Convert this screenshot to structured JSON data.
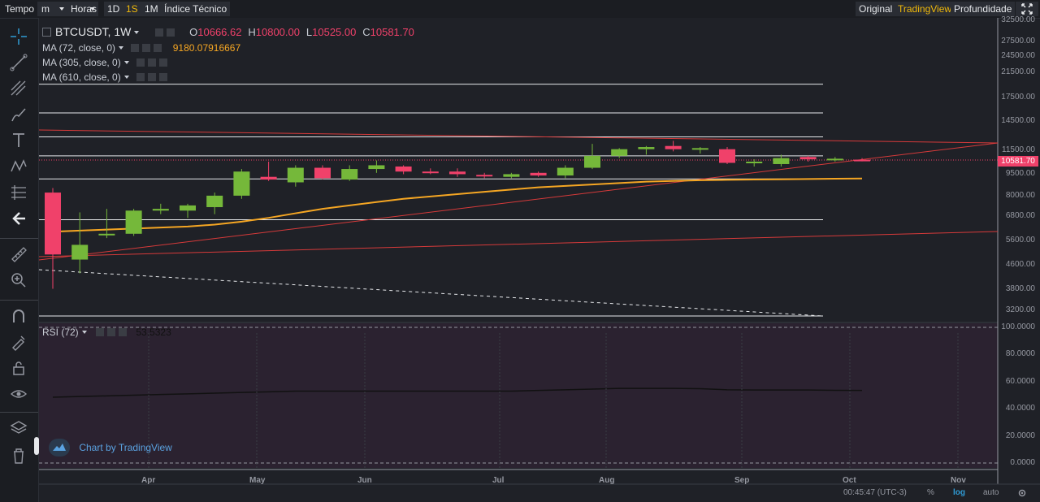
{
  "toolbar": {
    "time_label": "Tempo",
    "minute_select": "m",
    "hours_select": "Horas",
    "intervals": [
      "1D",
      "1S",
      "1M"
    ],
    "active_interval": "1S",
    "indicators_label": "Índice Técnico",
    "views": [
      "Original",
      "TradingView",
      "Profundidade"
    ],
    "active_view": "TradingView"
  },
  "legend": {
    "symbol": "BTCUSDT, 1W",
    "o_label": "O",
    "o_value": "10666.62",
    "h_label": "H",
    "h_value": "10800.00",
    "l_label": "L",
    "l_value": "10525.00",
    "c_label": "C",
    "c_value": "10581.70",
    "ma1_label": "MA (72, close, 0)",
    "ma1_value": "9180.07916667",
    "ma2_label": "MA (305, close, 0)",
    "ma3_label": "MA (610, close, 0)",
    "rsi_label": "RSI (72)",
    "rsi_value": "53.5323"
  },
  "colors": {
    "up": "#75b83a",
    "down": "#f0416a",
    "ma": "#f5a623",
    "trend": "#d63a3a",
    "rsi_bg": "#2b2230"
  },
  "price_axis": [
    "32500.00",
    "27500.00",
    "24500.00",
    "21500.00",
    "17500.00",
    "14500.00",
    "11500.00",
    "9500.00",
    "8000.00",
    "6800.00",
    "5600.00",
    "4600.00",
    "3800.00",
    "3200.00"
  ],
  "current_price": "10581.70",
  "rsi_axis": [
    "100.0000",
    "80.0000",
    "60.0000",
    "40.0000",
    "20.0000",
    "0.0000"
  ],
  "time_axis": [
    "Apr",
    "May",
    "Jun",
    "Jul",
    "Aug",
    "Sep",
    "Oct",
    "Nov"
  ],
  "watermark": "Chart by TradingView",
  "footer": {
    "clock": "00:45:47 (UTC-3)",
    "percent": "%",
    "log": "log",
    "auto": "auto"
  },
  "chart_data": {
    "type": "candlestick",
    "symbol": "BTCUSDT",
    "interval": "1W",
    "scale": "log",
    "grid": false,
    "candles": [
      {
        "o": 8200,
        "h": 8500,
        "l": 3800,
        "c": 5000
      },
      {
        "o": 4800,
        "h": 7000,
        "l": 4300,
        "c": 5400
      },
      {
        "o": 5900,
        "h": 7200,
        "l": 5700,
        "c": 5900
      },
      {
        "o": 5900,
        "h": 7200,
        "l": 5800,
        "c": 7100
      },
      {
        "o": 7100,
        "h": 7500,
        "l": 6900,
        "c": 7200
      },
      {
        "o": 7100,
        "h": 7500,
        "l": 6700,
        "c": 7400
      },
      {
        "o": 7300,
        "h": 8200,
        "l": 6900,
        "c": 8000
      },
      {
        "o": 8000,
        "h": 9900,
        "l": 7800,
        "c": 9700
      },
      {
        "o": 9300,
        "h": 10500,
        "l": 9000,
        "c": 9100
      },
      {
        "o": 8900,
        "h": 10200,
        "l": 8600,
        "c": 10000
      },
      {
        "o": 10000,
        "h": 10200,
        "l": 9100,
        "c": 9200
      },
      {
        "o": 9100,
        "h": 10200,
        "l": 9000,
        "c": 9900
      },
      {
        "o": 9900,
        "h": 10600,
        "l": 9600,
        "c": 10200
      },
      {
        "o": 10100,
        "h": 10200,
        "l": 9500,
        "c": 9700
      },
      {
        "o": 9700,
        "h": 9950,
        "l": 9500,
        "c": 9600
      },
      {
        "o": 9700,
        "h": 9950,
        "l": 9300,
        "c": 9500
      },
      {
        "o": 9450,
        "h": 9600,
        "l": 9200,
        "c": 9400
      },
      {
        "o": 9300,
        "h": 9600,
        "l": 9200,
        "c": 9500
      },
      {
        "o": 9600,
        "h": 9700,
        "l": 9300,
        "c": 9400
      },
      {
        "o": 9400,
        "h": 10200,
        "l": 9200,
        "c": 10000
      },
      {
        "o": 10000,
        "h": 12100,
        "l": 9900,
        "c": 11000
      },
      {
        "o": 11000,
        "h": 11700,
        "l": 10800,
        "c": 11600
      },
      {
        "o": 11600,
        "h": 11900,
        "l": 11100,
        "c": 11800
      },
      {
        "o": 11900,
        "h": 12400,
        "l": 11400,
        "c": 11600
      },
      {
        "o": 11600,
        "h": 11800,
        "l": 11200,
        "c": 11700
      },
      {
        "o": 11600,
        "h": 11800,
        "l": 10300,
        "c": 10400
      },
      {
        "o": 10400,
        "h": 10700,
        "l": 10100,
        "c": 10500
      },
      {
        "o": 10300,
        "h": 11100,
        "l": 10100,
        "c": 10800
      },
      {
        "o": 10900,
        "h": 11000,
        "l": 10500,
        "c": 10700
      },
      {
        "o": 10700,
        "h": 10900,
        "l": 10500,
        "c": 10750
      },
      {
        "o": 10666.62,
        "h": 10800,
        "l": 10525,
        "c": 10581.7
      }
    ],
    "ma_72": [
      6000,
      6050,
      6100,
      6150,
      6200,
      6250,
      6350,
      6500,
      6700,
      6950,
      7200,
      7400,
      7600,
      7800,
      7950,
      8100,
      8250,
      8400,
      8550,
      8650,
      8750,
      8850,
      8950,
      9000,
      9050,
      9080,
      9100,
      9120,
      9140,
      9160,
      9180.07916667
    ],
    "horizontal_levels": [
      19500,
      15500,
      12800,
      11000,
      9150,
      6600,
      3000
    ],
    "rsi": [
      48.5,
      49,
      49.5,
      50,
      50.5,
      51,
      51.5,
      52,
      52.5,
      53,
      53,
      53,
      53,
      53,
      53,
      53,
      53,
      53,
      53.5,
      54,
      54.5,
      55,
      55,
      55,
      54.8,
      54,
      53.8,
      53.8,
      53.8,
      53.6,
      53.5323
    ],
    "rsi_ylim": [
      0,
      100
    ]
  }
}
